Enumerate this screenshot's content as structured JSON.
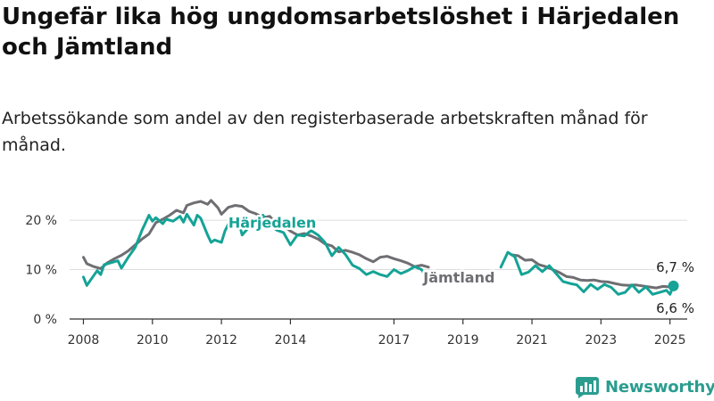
{
  "title": "Ungefär lika hög ungdomsarbetslöshet i Härjedalen och Jämtland",
  "subtitle": "Arbetssökande som andel av den registerbaserade arbetskraften månad för månad.",
  "brand": "Newsworthy",
  "colors": {
    "harjedalen": "#14a396",
    "jamtland": "#6e6e73",
    "grid": "#dddddd",
    "axis": "#333333"
  },
  "chart_data": {
    "type": "line",
    "xlim": [
      2007.6,
      2025.5
    ],
    "ylim": [
      0,
      22
    ],
    "x_ticks": [
      2008,
      2010,
      2012,
      2014,
      2017,
      2019,
      2021,
      2023,
      2025
    ],
    "x_tick_labels": [
      "2008",
      "2010",
      "2012",
      "2014",
      "2017",
      "2019",
      "2021",
      "2023",
      "2025"
    ],
    "y_ticks": [
      0,
      10,
      20
    ],
    "y_tick_labels": [
      "0 %",
      "10 %",
      "20 %"
    ],
    "grid": true,
    "series": [
      {
        "name": "Jämtland",
        "color": "#6e6e73",
        "segments": [
          [
            [
              2008.0,
              12.5
            ],
            [
              2008.1,
              11.2
            ],
            [
              2008.3,
              10.6
            ],
            [
              2008.5,
              10.2
            ],
            [
              2008.7,
              11.4
            ],
            [
              2008.9,
              12.2
            ],
            [
              2009.1,
              12.9
            ],
            [
              2009.3,
              13.8
            ],
            [
              2009.5,
              15.0
            ],
            [
              2009.7,
              16.2
            ],
            [
              2009.9,
              17.2
            ],
            [
              2010.1,
              19.5
            ],
            [
              2010.3,
              20.2
            ],
            [
              2010.5,
              21.0
            ],
            [
              2010.7,
              22.0
            ],
            [
              2010.9,
              21.5
            ],
            [
              2011.0,
              23.0
            ],
            [
              2011.2,
              23.5
            ],
            [
              2011.4,
              23.8
            ],
            [
              2011.6,
              23.2
            ],
            [
              2011.7,
              24.0
            ],
            [
              2011.9,
              22.5
            ],
            [
              2012.0,
              21.2
            ],
            [
              2012.2,
              22.6
            ],
            [
              2012.4,
              23.0
            ],
            [
              2012.6,
              22.8
            ],
            [
              2012.8,
              21.8
            ],
            [
              2013.0,
              21.3
            ],
            [
              2013.2,
              20.5
            ],
            [
              2013.4,
              20.8
            ],
            [
              2013.6,
              19.2
            ],
            [
              2013.8,
              18.9
            ],
            [
              2014.0,
              17.8
            ],
            [
              2014.2,
              17.0
            ],
            [
              2014.4,
              17.3
            ],
            [
              2014.6,
              16.8
            ],
            [
              2014.8,
              16.2
            ],
            [
              2015.0,
              15.2
            ],
            [
              2015.2,
              14.8
            ],
            [
              2015.4,
              13.6
            ],
            [
              2015.6,
              13.9
            ],
            [
              2015.8,
              13.5
            ],
            [
              2016.0,
              13.0
            ],
            [
              2016.2,
              12.2
            ],
            [
              2016.4,
              11.6
            ],
            [
              2016.6,
              12.5
            ],
            [
              2016.8,
              12.7
            ],
            [
              2017.0,
              12.2
            ],
            [
              2017.2,
              11.8
            ],
            [
              2017.4,
              11.3
            ],
            [
              2017.6,
              10.6
            ],
            [
              2017.8,
              10.9
            ],
            [
              2018.0,
              10.5
            ]
          ],
          [
            [
              2020.4,
              13.0
            ],
            [
              2020.6,
              12.8
            ],
            [
              2020.8,
              11.9
            ],
            [
              2021.0,
              12.0
            ],
            [
              2021.2,
              11.0
            ],
            [
              2021.4,
              10.6
            ],
            [
              2021.6,
              10.0
            ],
            [
              2021.8,
              9.4
            ],
            [
              2022.0,
              8.6
            ],
            [
              2022.2,
              8.4
            ],
            [
              2022.4,
              7.9
            ],
            [
              2022.6,
              7.8
            ],
            [
              2022.8,
              7.9
            ],
            [
              2023.0,
              7.6
            ],
            [
              2023.2,
              7.5
            ],
            [
              2023.4,
              7.2
            ],
            [
              2023.6,
              6.9
            ],
            [
              2023.8,
              6.8
            ],
            [
              2024.0,
              6.9
            ],
            [
              2024.2,
              6.7
            ],
            [
              2024.4,
              6.5
            ],
            [
              2024.6,
              6.3
            ],
            [
              2024.8,
              6.6
            ],
            [
              2025.0,
              6.5
            ],
            [
              2025.1,
              6.6
            ]
          ]
        ],
        "label": "Jämtland",
        "end_label": "6,6 %"
      },
      {
        "name": "Härjedalen",
        "color": "#14a396",
        "segments": [
          [
            [
              2008.0,
              8.5
            ],
            [
              2008.1,
              6.8
            ],
            [
              2008.2,
              7.8
            ],
            [
              2008.4,
              9.8
            ],
            [
              2008.5,
              9.0
            ],
            [
              2008.6,
              11.0
            ],
            [
              2008.8,
              11.4
            ],
            [
              2009.0,
              11.8
            ],
            [
              2009.1,
              10.3
            ],
            [
              2009.3,
              12.5
            ],
            [
              2009.5,
              14.5
            ],
            [
              2009.7,
              18.0
            ],
            [
              2009.8,
              19.5
            ],
            [
              2009.9,
              21.0
            ],
            [
              2010.0,
              19.8
            ],
            [
              2010.1,
              20.5
            ],
            [
              2010.3,
              19.3
            ],
            [
              2010.4,
              20.2
            ],
            [
              2010.6,
              19.8
            ],
            [
              2010.8,
              20.8
            ],
            [
              2010.9,
              19.6
            ],
            [
              2011.0,
              21.2
            ],
            [
              2011.2,
              19.0
            ],
            [
              2011.3,
              21.0
            ],
            [
              2011.4,
              20.4
            ],
            [
              2011.6,
              17.0
            ],
            [
              2011.7,
              15.5
            ],
            [
              2011.8,
              16.0
            ],
            [
              2012.0,
              15.5
            ],
            [
              2012.1,
              17.8
            ],
            [
              2012.3,
              20.5
            ],
            [
              2012.5,
              19.8
            ],
            [
              2012.6,
              17.0
            ],
            [
              2012.8,
              18.6
            ],
            [
              2013.0,
              19.5
            ],
            [
              2013.2,
              21.0
            ],
            [
              2013.4,
              19.0
            ],
            [
              2013.6,
              18.0
            ],
            [
              2013.8,
              17.5
            ],
            [
              2014.0,
              15.0
            ],
            [
              2014.2,
              17.0
            ],
            [
              2014.4,
              16.8
            ],
            [
              2014.6,
              17.9
            ],
            [
              2014.8,
              17.0
            ],
            [
              2015.0,
              15.5
            ],
            [
              2015.2,
              12.8
            ],
            [
              2015.4,
              14.5
            ],
            [
              2015.6,
              13.0
            ],
            [
              2015.8,
              10.9
            ],
            [
              2016.0,
              10.2
            ],
            [
              2016.2,
              9.0
            ],
            [
              2016.4,
              9.6
            ],
            [
              2016.6,
              9.0
            ],
            [
              2016.8,
              8.6
            ],
            [
              2017.0,
              10.0
            ],
            [
              2017.2,
              9.2
            ],
            [
              2017.4,
              9.8
            ],
            [
              2017.6,
              10.6
            ],
            [
              2017.8,
              10.0
            ],
            [
              2018.0,
              7.8
            ]
          ],
          [
            [
              2020.1,
              10.5
            ],
            [
              2020.3,
              13.5
            ],
            [
              2020.5,
              12.6
            ],
            [
              2020.7,
              9.0
            ],
            [
              2020.9,
              9.5
            ],
            [
              2021.1,
              10.8
            ],
            [
              2021.3,
              9.6
            ],
            [
              2021.5,
              10.8
            ],
            [
              2021.7,
              9.2
            ],
            [
              2021.9,
              7.6
            ],
            [
              2022.1,
              7.2
            ],
            [
              2022.3,
              6.9
            ],
            [
              2022.5,
              5.5
            ],
            [
              2022.7,
              7.0
            ],
            [
              2022.9,
              6.0
            ],
            [
              2023.1,
              7.0
            ],
            [
              2023.3,
              6.4
            ],
            [
              2023.5,
              5.0
            ],
            [
              2023.7,
              5.4
            ],
            [
              2023.9,
              6.9
            ],
            [
              2024.1,
              5.4
            ],
            [
              2024.3,
              6.5
            ],
            [
              2024.5,
              5.0
            ],
            [
              2024.7,
              5.4
            ],
            [
              2024.9,
              5.8
            ],
            [
              2025.0,
              5.0
            ],
            [
              2025.1,
              6.7
            ]
          ]
        ],
        "label": "Härjedalen",
        "end_label": "6,7 %"
      }
    ]
  }
}
